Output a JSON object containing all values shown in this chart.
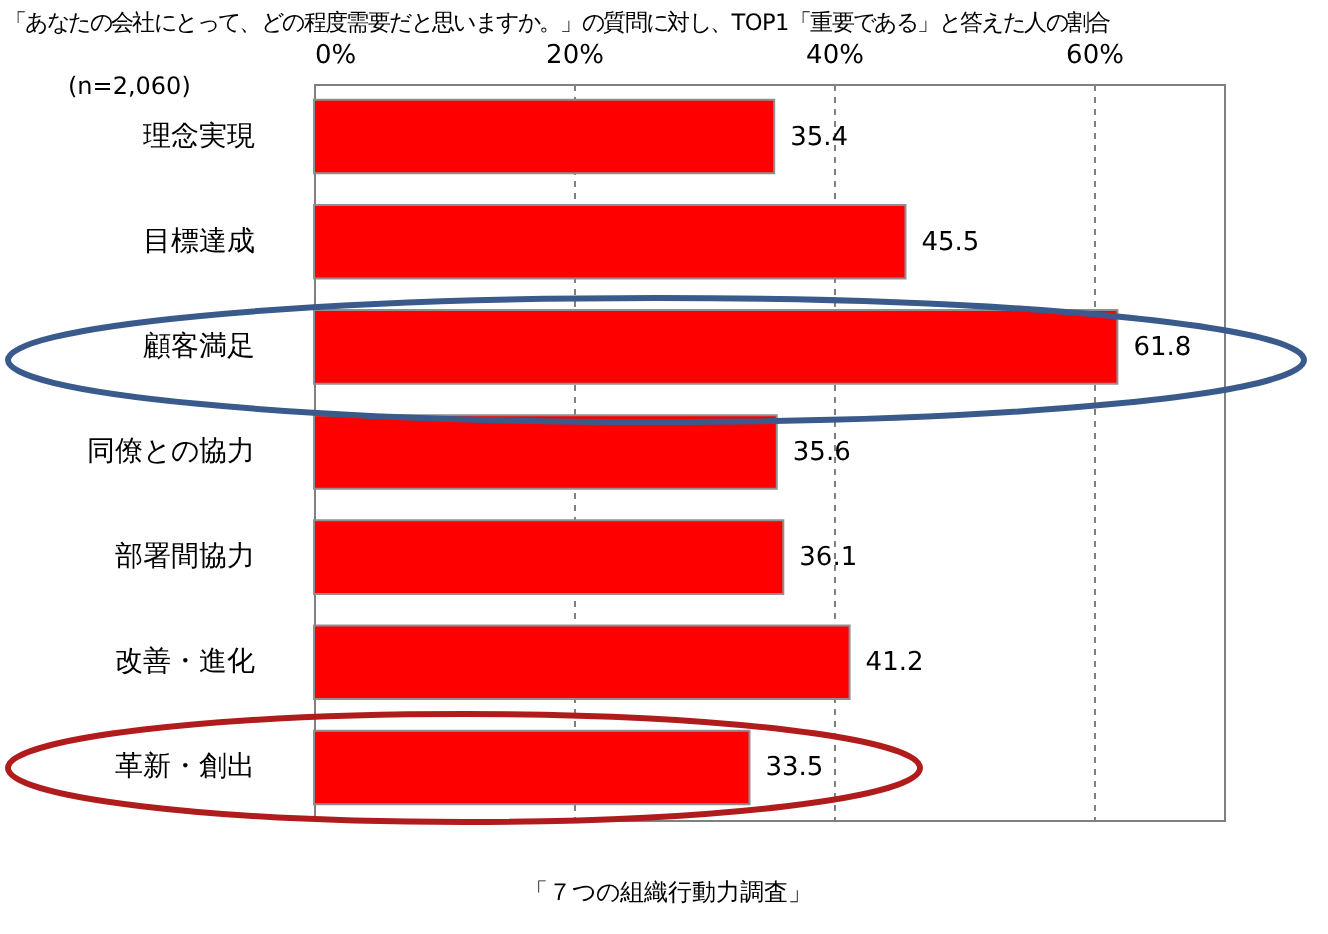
{
  "chart_data": {
    "type": "bar",
    "orientation": "horizontal",
    "title": "「あなたの会社にとって、どの程度需要だと思いますか。」の質問に対し、TOP1「重要である」と答えた人の割合",
    "categories": [
      "理念実現",
      "目標達成",
      "顧客満足",
      "同僚との協力",
      "部署間協力",
      "改善・進化",
      "革新・創出"
    ],
    "values": [
      35.4,
      45.5,
      61.8,
      35.6,
      36.1,
      41.2,
      33.5
    ],
    "color": "#ff0000",
    "xlim": [
      0,
      70
    ],
    "xticks": [
      {
        "value": 0,
        "label": "0%"
      },
      {
        "value": 20,
        "label": "20%"
      },
      {
        "value": 40,
        "label": "40%"
      },
      {
        "value": 60,
        "label": "60%"
      }
    ],
    "grid": true,
    "data_labels": true,
    "annotations": [
      "(n=2,060)",
      "「７つの組織行動力調査」"
    ]
  }
}
